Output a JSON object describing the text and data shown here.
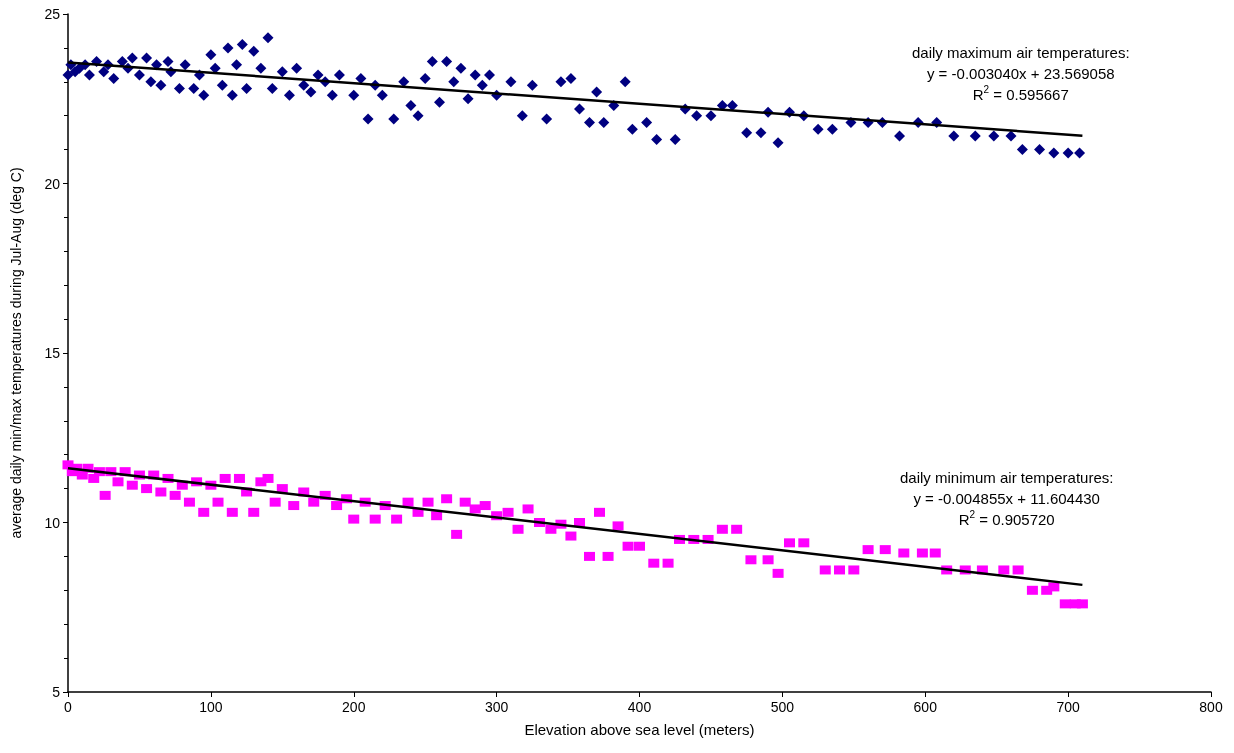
{
  "chart_data": {
    "type": "scatter",
    "xlabel": "Elevation above sea level (meters)",
    "ylabel": "average daily min/max temperatures during Jul-Aug (deg C)",
    "xlim": [
      0,
      800
    ],
    "xticks": [
      0,
      100,
      200,
      300,
      400,
      500,
      600,
      700,
      800
    ],
    "ylim": [
      5,
      25
    ],
    "yticks": [
      5,
      10,
      15,
      20,
      25
    ],
    "grid": false,
    "annotations": [
      "daily maximum air temperatures:\ny = -0.003040x + 23.569058\nR$^{2}$ = 0.595667",
      "daily minimum air temperatures:\ny = -0.004855x + 11.604430\nR$^{2}$ = 0.905720"
    ],
    "series": [
      {
        "marker": "diamond",
        "color": "#000080",
        "x": [
          0,
          2,
          5,
          8,
          12,
          15,
          20,
          25,
          28,
          32,
          38,
          42,
          45,
          50,
          55,
          58,
          62,
          65,
          70,
          72,
          78,
          82,
          88,
          92,
          95,
          100,
          103,
          108,
          112,
          115,
          118,
          122,
          125,
          130,
          135,
          140,
          143,
          150,
          155,
          160,
          165,
          170,
          175,
          180,
          185,
          190,
          200,
          205,
          210,
          215,
          220,
          228,
          235,
          240,
          245,
          250,
          255,
          260,
          265,
          270,
          275,
          280,
          285,
          290,
          295,
          300,
          310,
          318,
          325,
          335,
          345,
          352,
          358,
          365,
          370,
          375,
          382,
          390,
          395,
          405,
          412,
          425,
          432,
          440,
          450,
          458,
          465,
          475,
          485,
          490,
          497,
          505,
          515,
          525,
          535,
          548,
          560,
          570,
          582,
          595,
          608,
          620,
          635,
          648,
          660,
          668,
          680,
          690,
          700,
          708
        ],
        "values": [
          23.2,
          23.5,
          23.3,
          23.4,
          23.5,
          23.2,
          23.6,
          23.3,
          23.5,
          23.1,
          23.6,
          23.4,
          23.7,
          23.2,
          23.7,
          23.0,
          23.5,
          22.9,
          23.6,
          23.3,
          22.8,
          23.5,
          22.8,
          23.2,
          22.6,
          23.8,
          23.4,
          22.9,
          24.0,
          22.6,
          23.5,
          24.1,
          22.8,
          23.9,
          23.4,
          24.3,
          22.8,
          23.3,
          22.6,
          23.4,
          22.9,
          22.7,
          23.2,
          23.0,
          22.6,
          23.2,
          22.6,
          23.1,
          21.9,
          22.9,
          22.6,
          21.9,
          23.0,
          22.3,
          22.0,
          23.1,
          23.6,
          22.4,
          23.6,
          23.0,
          23.4,
          22.5,
          23.2,
          22.9,
          23.2,
          22.6,
          23.0,
          22.0,
          22.9,
          21.9,
          23.0,
          23.1,
          22.2,
          21.8,
          22.7,
          21.8,
          22.3,
          23.0,
          21.6,
          21.8,
          21.3,
          21.3,
          22.2,
          22.0,
          22.0,
          22.3,
          22.3,
          21.5,
          21.5,
          22.1,
          21.2,
          22.1,
          22.0,
          21.6,
          21.6,
          21.8,
          21.8,
          21.8,
          21.4,
          21.8,
          21.8,
          21.4,
          21.4,
          21.4,
          21.4,
          21.0,
          21.0,
          20.9,
          20.9,
          20.9
        ]
      },
      {
        "marker": "square",
        "color": "#ff00ff",
        "x": [
          0,
          3,
          6,
          10,
          14,
          18,
          22,
          26,
          30,
          35,
          40,
          45,
          50,
          55,
          60,
          65,
          70,
          75,
          80,
          85,
          90,
          95,
          100,
          105,
          110,
          115,
          120,
          125,
          130,
          135,
          140,
          145,
          150,
          158,
          165,
          172,
          180,
          188,
          195,
          200,
          208,
          215,
          222,
          230,
          238,
          245,
          252,
          258,
          265,
          272,
          278,
          285,
          292,
          300,
          308,
          315,
          322,
          330,
          338,
          345,
          352,
          358,
          365,
          372,
          378,
          385,
          392,
          400,
          410,
          420,
          428,
          438,
          448,
          458,
          468,
          478,
          490,
          497,
          505,
          515,
          530,
          540,
          550,
          560,
          572,
          585,
          598,
          607,
          615,
          628,
          640,
          655,
          665,
          675,
          685,
          690,
          698,
          705,
          710
        ],
        "values": [
          11.7,
          11.5,
          11.6,
          11.4,
          11.6,
          11.3,
          11.5,
          10.8,
          11.5,
          11.2,
          11.5,
          11.1,
          11.4,
          11.0,
          11.4,
          10.9,
          11.3,
          10.8,
          11.1,
          10.6,
          11.2,
          10.3,
          11.1,
          10.6,
          11.3,
          10.3,
          11.3,
          10.9,
          10.3,
          11.2,
          11.3,
          10.6,
          11.0,
          10.5,
          10.9,
          10.6,
          10.8,
          10.5,
          10.7,
          10.1,
          10.6,
          10.1,
          10.5,
          10.1,
          10.6,
          10.3,
          10.6,
          10.2,
          10.7,
          9.65,
          10.6,
          10.4,
          10.5,
          10.2,
          10.3,
          9.8,
          10.4,
          10.0,
          9.8,
          9.95,
          9.6,
          10.0,
          9.0,
          10.3,
          9.0,
          9.9,
          9.3,
          9.3,
          8.8,
          8.8,
          9.5,
          9.5,
          9.5,
          9.8,
          9.8,
          8.9,
          8.9,
          8.5,
          9.4,
          9.4,
          8.6,
          8.6,
          8.6,
          9.2,
          9.2,
          9.1,
          9.1,
          9.1,
          8.6,
          8.6,
          8.6,
          8.6,
          8.6,
          8.0,
          8.0,
          8.1,
          7.6,
          7.6,
          7.6
        ]
      },
      {
        "type": "line",
        "marker": "none",
        "color": "#000000",
        "x": [
          0,
          710
        ],
        "values": [
          23.57,
          21.41
        ]
      },
      {
        "type": "line",
        "marker": "none",
        "color": "#000000",
        "x": [
          0,
          710
        ],
        "values": [
          11.6,
          8.16
        ]
      }
    ]
  }
}
